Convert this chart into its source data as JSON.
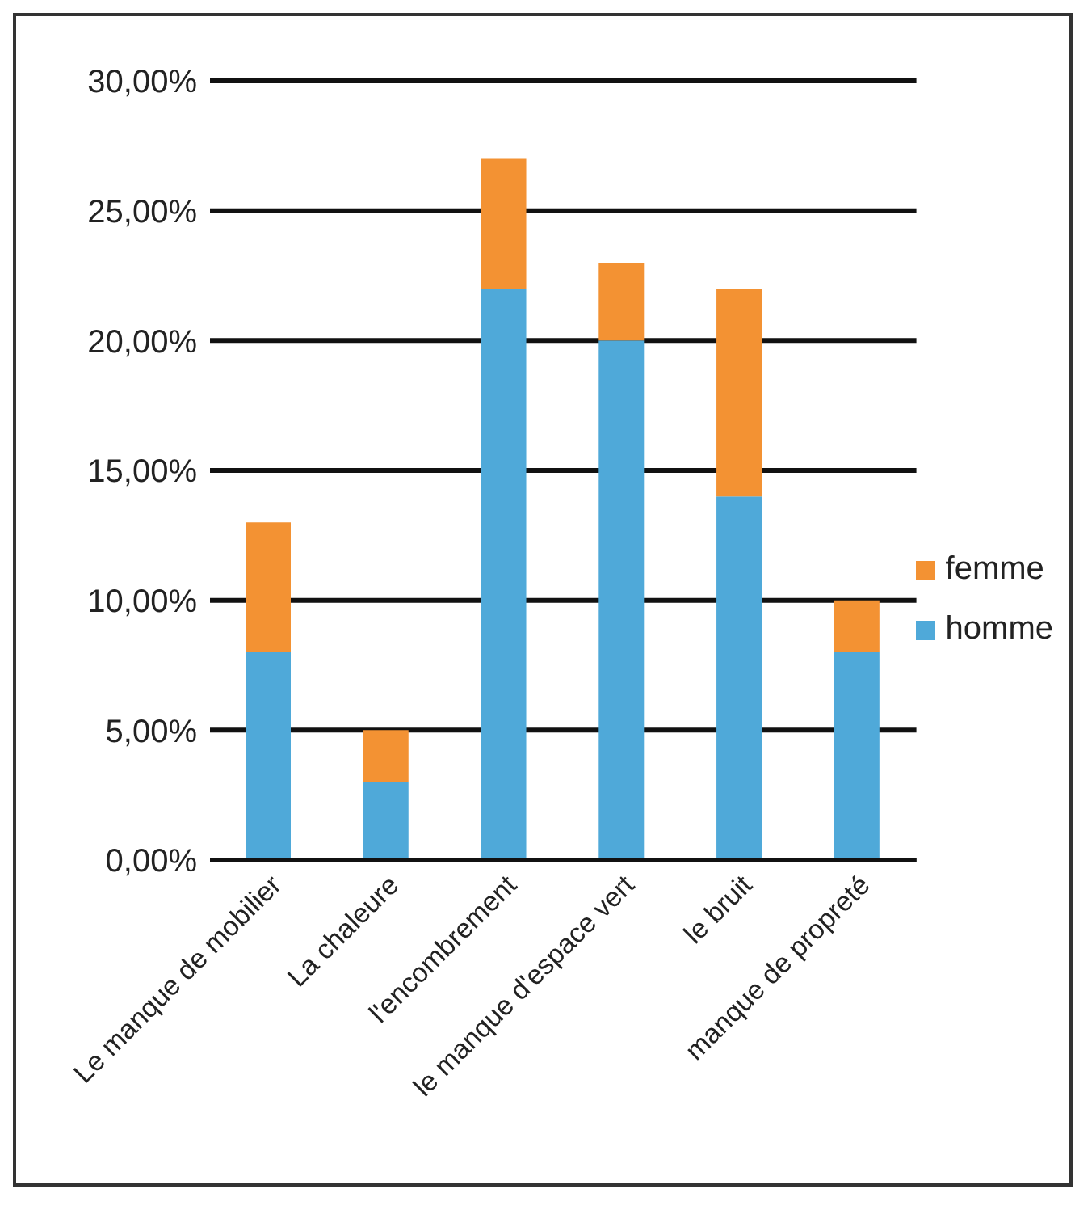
{
  "chart_data": {
    "type": "bar",
    "stacked": true,
    "categories": [
      "Le manque de mobilier",
      "La chaleure",
      "l'encombrement",
      "le manque d'espace vert",
      "le bruit",
      "manque de propreté"
    ],
    "series": [
      {
        "name": "homme",
        "color": "#4fa9d9",
        "values": [
          8,
          3,
          22,
          20,
          14,
          8
        ]
      },
      {
        "name": "femme",
        "color": "#f39233",
        "values": [
          5,
          2,
          5,
          3,
          8,
          2
        ]
      }
    ],
    "ylim": [
      0,
      30
    ],
    "yticks": [
      {
        "value": 0,
        "label": "0,00%"
      },
      {
        "value": 5,
        "label": "5,00%"
      },
      {
        "value": 10,
        "label": "10,00%"
      },
      {
        "value": 15,
        "label": "15,00%"
      },
      {
        "value": 20,
        "label": "20,00%"
      },
      {
        "value": 25,
        "label": "25,00%"
      },
      {
        "value": 30,
        "label": "30,00%"
      }
    ],
    "grid": "y",
    "legend": "right"
  }
}
